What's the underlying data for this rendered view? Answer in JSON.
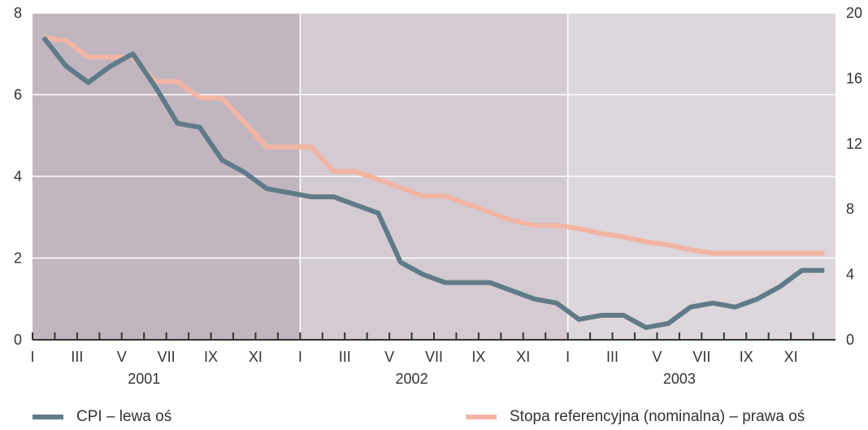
{
  "chart_data": {
    "type": "line",
    "x_tick_labels": [
      "I",
      "III",
      "V",
      "VII",
      "IX",
      "XI",
      "I",
      "III",
      "V",
      "VII",
      "IX",
      "XI",
      "I",
      "III",
      "V",
      "VII",
      "IX",
      "XI"
    ],
    "year_labels": [
      "2001",
      "2002",
      "2003"
    ],
    "left_axis": {
      "ylim": [
        0,
        8
      ],
      "ticks": [
        "0",
        "2",
        "4",
        "6",
        "8"
      ]
    },
    "right_axis": {
      "ylim": [
        0,
        20
      ],
      "ticks": [
        "0",
        "4",
        "8",
        "12",
        "16",
        "20"
      ]
    },
    "grid": true,
    "legend_placement": "bottom",
    "series": [
      {
        "name": "CPI – lewa oś",
        "axis": "left",
        "color": "#5f7b87",
        "values": [
          7.4,
          6.7,
          6.3,
          6.7,
          7.0,
          6.2,
          5.3,
          5.2,
          4.4,
          4.1,
          3.7,
          3.6,
          3.5,
          3.5,
          3.3,
          3.1,
          1.9,
          1.6,
          1.4,
          1.4,
          1.4,
          1.2,
          1.0,
          0.9,
          0.5,
          0.6,
          0.6,
          0.3,
          0.4,
          0.8,
          0.9,
          0.8,
          1.0,
          1.3,
          1.7,
          1.7
        ]
      },
      {
        "name": "Stopa referencyjna (nominalna) – prawa oś",
        "axis": "right",
        "color": "#f2b5a4",
        "values": [
          18.5,
          18.3,
          17.3,
          17.3,
          17.3,
          15.8,
          15.8,
          14.8,
          14.8,
          13.3,
          11.8,
          11.8,
          11.8,
          10.3,
          10.3,
          9.8,
          9.3,
          8.8,
          8.8,
          8.3,
          7.8,
          7.3,
          7.0,
          7.0,
          6.8,
          6.5,
          6.3,
          6.0,
          5.8,
          5.5,
          5.3,
          5.3,
          5.3,
          5.3,
          5.3,
          5.3
        ]
      }
    ],
    "background_bands": [
      {
        "year": "2001",
        "color": "#c1b5c0"
      },
      {
        "year": "2002",
        "color": "#d4cbd2"
      },
      {
        "year": "2003",
        "color": "#ddd6dc"
      }
    ]
  }
}
